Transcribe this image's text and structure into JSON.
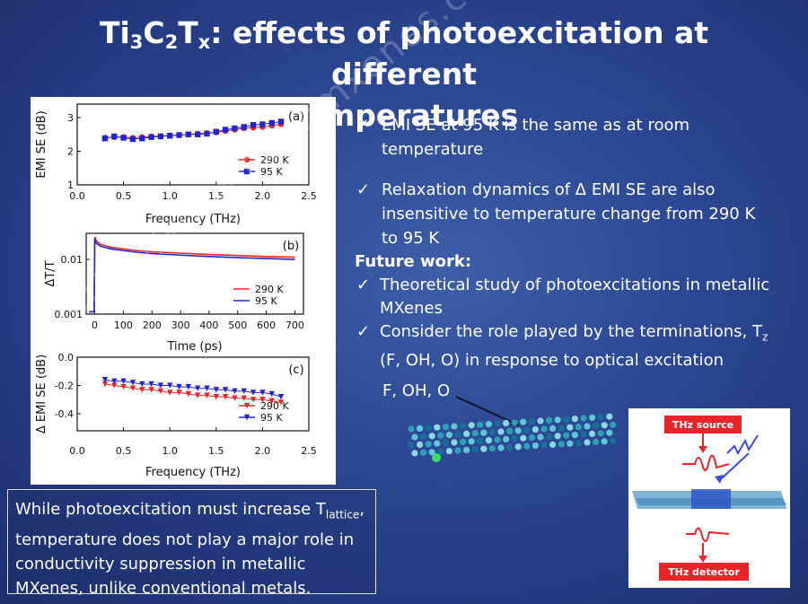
{
  "title": {
    "prefix": "Ti",
    "s1": "3",
    "c": "C",
    "s2": "2",
    "t": "T",
    "s3": "x",
    "rest_line1": ": effects of photoexcitation at different",
    "line2": "temperatures"
  },
  "bullets": [
    {
      "text": "EMI SE at 95 K is the same as at room temperature"
    },
    {
      "text": "Relaxation dynamics of Δ EMI SE are also insensitive to temperature change from 290 K to 95 K"
    }
  ],
  "future": {
    "heading": "Future work:",
    "item1": "Theoretical study of photoexcitations in metallic MXenes",
    "item2_a": "Consider the role played by the terminations, T",
    "item2_sub": "z",
    "item2_b": " (F, OH, O) in response to optical excitation"
  },
  "structure_label": "F, OH, O",
  "thz": {
    "source": "THz source",
    "detector": "THz detector"
  },
  "summary": {
    "a": "While photoexcitation must increase T",
    "sub": "lattice",
    "b": ", temperature does not play a major role in conductivity suppression in metallic MXenes, unlike conventional metals."
  },
  "watermark": "http://www.nanomxenes.com",
  "colors": {
    "red": "#e8262a",
    "blue": "#2424c8",
    "accent": "#ffffff"
  },
  "chart_data": [
    {
      "type": "scatter",
      "panel_label": "(a)",
      "xlabel": "Frequency (THz)",
      "ylabel": "EMI SE (dB)",
      "xlim": [
        0.0,
        2.5
      ],
      "ylim": [
        1,
        3.4
      ],
      "xticks": [
        "0.0",
        "0.5",
        "1.0",
        "1.5",
        "2.0",
        "2.5"
      ],
      "yticks": [
        "1",
        "2",
        "3"
      ],
      "legend_position": "center-right",
      "series": [
        {
          "name": "290 K",
          "color": "#e8262a",
          "marker": "circle",
          "x": [
            0.3,
            0.4,
            0.5,
            0.6,
            0.7,
            0.8,
            0.9,
            1.0,
            1.1,
            1.2,
            1.3,
            1.4,
            1.5,
            1.6,
            1.7,
            1.8,
            1.9,
            2.0,
            2.1,
            2.2
          ],
          "y": [
            2.4,
            2.42,
            2.42,
            2.4,
            2.42,
            2.44,
            2.45,
            2.47,
            2.48,
            2.5,
            2.52,
            2.54,
            2.56,
            2.6,
            2.64,
            2.68,
            2.7,
            2.72,
            2.76,
            2.8
          ]
        },
        {
          "name": "95 K",
          "color": "#2424c8",
          "marker": "square",
          "x": [
            0.3,
            0.4,
            0.5,
            0.6,
            0.7,
            0.8,
            0.9,
            1.0,
            1.1,
            1.2,
            1.3,
            1.4,
            1.5,
            1.6,
            1.7,
            1.8,
            1.9,
            2.0,
            2.1,
            2.2
          ],
          "y": [
            2.38,
            2.44,
            2.4,
            2.36,
            2.38,
            2.42,
            2.44,
            2.46,
            2.48,
            2.5,
            2.5,
            2.52,
            2.58,
            2.64,
            2.68,
            2.72,
            2.78,
            2.8,
            2.84,
            2.88
          ]
        }
      ]
    },
    {
      "type": "line",
      "panel_label": "(b)",
      "xlabel": "Time (ps)",
      "ylabel": "ΔT/T",
      "xlim": [
        -30,
        730
      ],
      "ylim_log": [
        0.001,
        0.03
      ],
      "yscale": "log",
      "xticks": [
        "0",
        "100",
        "200",
        "300",
        "400",
        "500",
        "600",
        "700"
      ],
      "yticks": [
        "0.001",
        "0.01"
      ],
      "legend_position": "bottom-right",
      "series": [
        {
          "name": "290 K",
          "color": "#e8262a",
          "x": [
            -20,
            -2,
            0,
            5,
            20,
            50,
            100,
            150,
            200,
            300,
            400,
            500,
            600,
            700
          ],
          "y": [
            0.0011,
            0.0011,
            0.026,
            0.022,
            0.019,
            0.017,
            0.0155,
            0.0145,
            0.0138,
            0.013,
            0.0123,
            0.0118,
            0.0113,
            0.011
          ]
        },
        {
          "name": "95 K",
          "color": "#2424c8",
          "x": [
            -20,
            -2,
            0,
            5,
            20,
            50,
            100,
            150,
            200,
            300,
            400,
            500,
            600,
            700
          ],
          "y": [
            0.0011,
            0.0011,
            0.024,
            0.02,
            0.0175,
            0.0158,
            0.0145,
            0.0135,
            0.0128,
            0.012,
            0.0113,
            0.0108,
            0.0104,
            0.01
          ]
        }
      ]
    },
    {
      "type": "scatter",
      "panel_label": "(c)",
      "xlabel": "Frequency (THz)",
      "ylabel": "Δ EMI SE (dB)",
      "xlim": [
        0.0,
        2.5
      ],
      "ylim": [
        -0.52,
        0.0
      ],
      "xticks": [
        "0.0",
        "0.5",
        "1.0",
        "1.5",
        "2.0",
        "2.5"
      ],
      "yticks": [
        "0.0",
        "-0.2",
        "-0.4"
      ],
      "legend_position": "bottom-right",
      "series": [
        {
          "name": "290 K",
          "color": "#e8262a",
          "marker": "triangle-down",
          "x": [
            0.3,
            0.4,
            0.5,
            0.6,
            0.7,
            0.8,
            0.9,
            1.0,
            1.1,
            1.2,
            1.3,
            1.4,
            1.5,
            1.6,
            1.7,
            1.8,
            1.9,
            2.0,
            2.1,
            2.2
          ],
          "y": [
            -0.19,
            -0.2,
            -0.21,
            -0.22,
            -0.23,
            -0.23,
            -0.24,
            -0.25,
            -0.25,
            -0.26,
            -0.27,
            -0.27,
            -0.28,
            -0.28,
            -0.29,
            -0.29,
            -0.3,
            -0.3,
            -0.31,
            -0.32
          ]
        },
        {
          "name": "95 K",
          "color": "#2424c8",
          "marker": "triangle-down",
          "x": [
            0.3,
            0.4,
            0.5,
            0.6,
            0.7,
            0.8,
            0.9,
            1.0,
            1.1,
            1.2,
            1.3,
            1.4,
            1.5,
            1.6,
            1.7,
            1.8,
            1.9,
            2.0,
            2.1,
            2.2
          ],
          "y": [
            -0.16,
            -0.17,
            -0.17,
            -0.18,
            -0.19,
            -0.19,
            -0.2,
            -0.2,
            -0.21,
            -0.21,
            -0.22,
            -0.22,
            -0.23,
            -0.23,
            -0.24,
            -0.24,
            -0.25,
            -0.25,
            -0.26,
            -0.28
          ]
        }
      ]
    }
  ]
}
